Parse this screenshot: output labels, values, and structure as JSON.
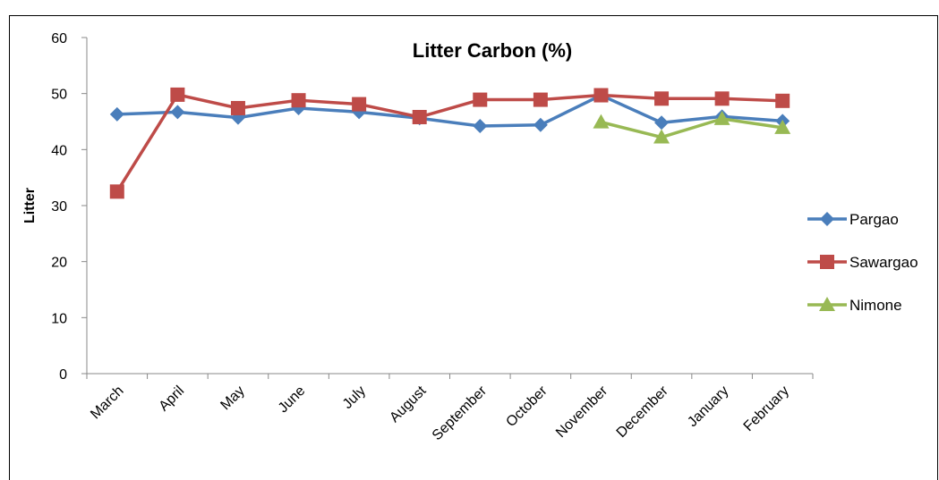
{
  "chart_data": {
    "type": "line",
    "title": "Litter Carbon (%)",
    "xlabel": "",
    "ylabel": "Litter",
    "ylim": [
      0,
      60
    ],
    "yticks": [
      0,
      10,
      20,
      30,
      40,
      50,
      60
    ],
    "grid": false,
    "legend_position": "right",
    "categories": [
      "March",
      "April",
      "May",
      "June",
      "July",
      "August",
      "September",
      "October",
      "November",
      "December",
      "January",
      "February"
    ],
    "series": [
      {
        "name": "Pargao",
        "color": "#4a7ebb",
        "marker": "diamond",
        "values": [
          46.3,
          46.7,
          45.7,
          47.4,
          46.7,
          45.6,
          44.2,
          44.4,
          49.7,
          44.8,
          45.9,
          45.1
        ]
      },
      {
        "name": "Sawargao",
        "color": "#be4b48",
        "marker": "square",
        "values": [
          32.5,
          49.8,
          47.4,
          48.8,
          48.1,
          45.8,
          48.9,
          48.9,
          49.7,
          49.1,
          49.1,
          48.7
        ]
      },
      {
        "name": "Nimone",
        "color": "#98b954",
        "marker": "triangle",
        "values": [
          null,
          null,
          null,
          null,
          null,
          null,
          null,
          null,
          44.9,
          42.2,
          45.5,
          43.9
        ]
      }
    ]
  }
}
